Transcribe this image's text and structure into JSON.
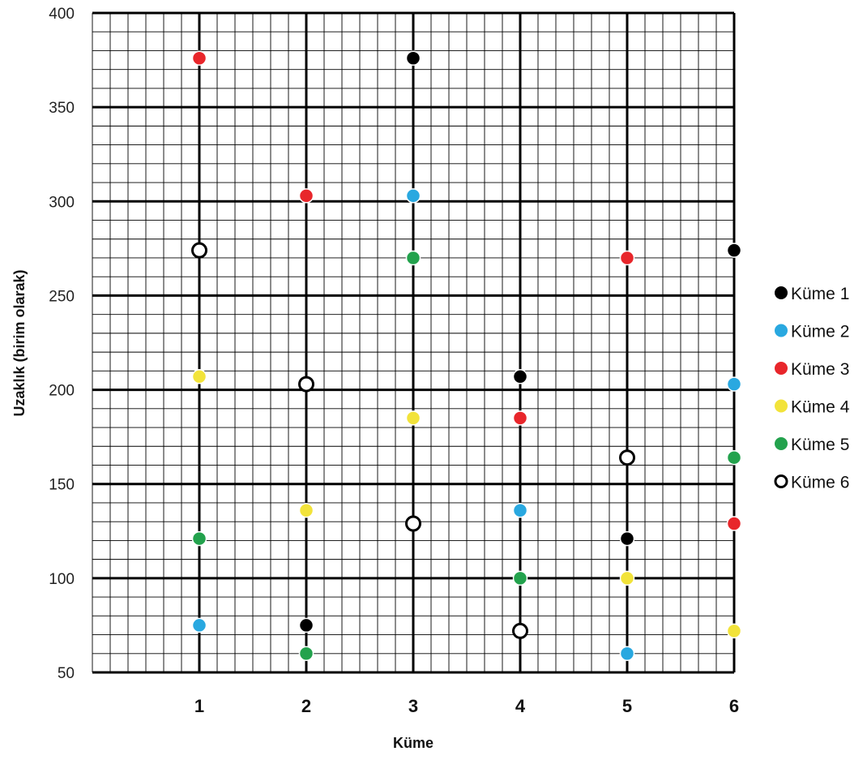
{
  "chart_data": {
    "type": "scatter",
    "title": "",
    "xlabel": "Küme",
    "ylabel": "Uzaklık (birim olarak)",
    "xlim": [
      0,
      6
    ],
    "ylim": [
      50,
      400
    ],
    "x_ticks": [
      1,
      2,
      3,
      4,
      5,
      6
    ],
    "y_ticks": [
      50,
      100,
      150,
      200,
      250,
      300,
      350,
      400
    ],
    "grid": true,
    "legend_position": "right",
    "series": [
      {
        "name": "Küme 1",
        "color": "#000000",
        "hollow": false,
        "x": [
          2,
          3,
          4,
          5,
          6
        ],
        "y": [
          75,
          376,
          207,
          121,
          274
        ]
      },
      {
        "name": "Küme 2",
        "color": "#29a8e0",
        "hollow": false,
        "x": [
          1,
          3,
          4,
          5,
          6
        ],
        "y": [
          75,
          303,
          136,
          60,
          203
        ]
      },
      {
        "name": "Küme 3",
        "color": "#e8262b",
        "hollow": false,
        "x": [
          1,
          2,
          4,
          5,
          6
        ],
        "y": [
          376,
          303,
          185,
          270,
          129
        ]
      },
      {
        "name": "Küme 4",
        "color": "#f2e33a",
        "hollow": false,
        "x": [
          1,
          2,
          3,
          5,
          6
        ],
        "y": [
          207,
          136,
          185,
          100,
          72
        ]
      },
      {
        "name": "Küme 5",
        "color": "#23a24d",
        "hollow": false,
        "x": [
          1,
          2,
          3,
          4,
          6
        ],
        "y": [
          121,
          60,
          270,
          100,
          164
        ]
      },
      {
        "name": "Küme 6",
        "color": "#ffffff",
        "hollow": true,
        "x": [
          1,
          2,
          3,
          4,
          5
        ],
        "y": [
          274,
          203,
          129,
          72,
          164
        ]
      }
    ]
  }
}
